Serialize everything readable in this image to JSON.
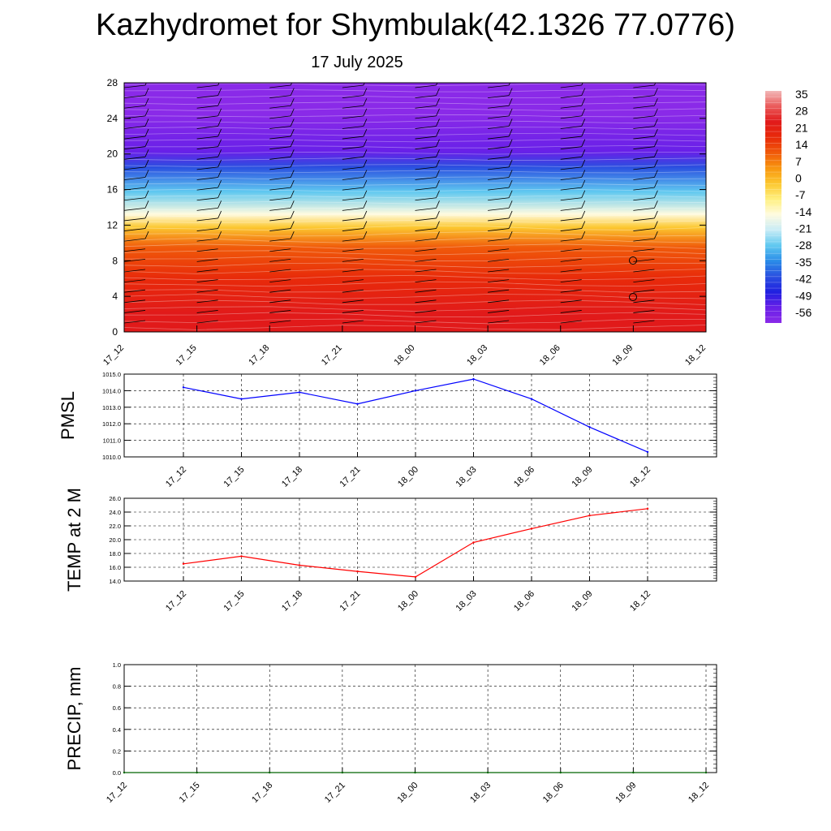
{
  "page": {
    "title": "Kazhydromet for Shymbulak(42.1326 77.0776)",
    "subtitle": "17 July 2025"
  },
  "colorbar": {
    "labels": [
      "35",
      "28",
      "21",
      "14",
      "7",
      "0",
      "-7",
      "-14",
      "-21",
      "-28",
      "-35",
      "-42",
      "-49",
      "-56"
    ],
    "colors": [
      "#f2b8b8",
      "#ea5a5a",
      "#e11a1a",
      "#e82a0a",
      "#f05a0a",
      "#f8960f",
      "#fcc830",
      "#fff080",
      "#fffbe0",
      "#c8ecf6",
      "#5fc8f0",
      "#2a8ce8",
      "#2a50e0",
      "#2020e0",
      "#6820e8",
      "#8a2ae8"
    ]
  },
  "chart_data": [
    {
      "type": "heatmap",
      "name": "vertical-profile",
      "x": [
        "17_12",
        "17_15",
        "17_18",
        "17_21",
        "18_00",
        "18_03",
        "18_06",
        "18_09",
        "18_12"
      ],
      "y_ticks": [
        0,
        4,
        8,
        12,
        16,
        20,
        24,
        28
      ],
      "ylim": [
        0,
        28
      ],
      "bands": [
        {
          "from": 0,
          "to": 4,
          "value": 25
        },
        {
          "from": 4,
          "to": 8,
          "value": 18
        },
        {
          "from": 8,
          "to": 11,
          "value": 8
        },
        {
          "from": 11,
          "to": 12.5,
          "value": -5
        },
        {
          "from": 12.5,
          "to": 14,
          "value": -14
        },
        {
          "from": 14,
          "to": 17.5,
          "value": -30
        },
        {
          "from": 17.5,
          "to": 19.5,
          "value": -42
        },
        {
          "from": 19.5,
          "to": 21,
          "value": -56
        },
        {
          "from": 21,
          "to": 28,
          "value": -62
        }
      ]
    },
    {
      "type": "line",
      "name": "pmsl",
      "ylabel": "PMSL",
      "x": [
        "17_12",
        "17_15",
        "17_18",
        "17_21",
        "18_00",
        "18_03",
        "18_06",
        "18_09",
        "18_12"
      ],
      "values": [
        1014.2,
        1013.5,
        1013.9,
        1013.2,
        1014.0,
        1014.7,
        1013.5,
        1011.8,
        1010.3
      ],
      "ylim": [
        1010.0,
        1015.0
      ],
      "y_ticks": [
        "1010.0",
        "1011.0",
        "1012.0",
        "1013.0",
        "1014.0",
        "1015.0"
      ],
      "color": "#0000ff",
      "grid": true
    },
    {
      "type": "line",
      "name": "temp",
      "ylabel": "TEMP at 2 M",
      "x": [
        "17_12",
        "17_15",
        "17_18",
        "17_21",
        "18_00",
        "18_03",
        "18_06",
        "18_09",
        "18_12"
      ],
      "values": [
        16.5,
        17.6,
        16.3,
        15.4,
        14.6,
        19.6,
        21.6,
        23.5,
        24.5
      ],
      "ylim": [
        14.0,
        26.0
      ],
      "y_ticks": [
        "14.0",
        "16.0",
        "18.0",
        "20.0",
        "22.0",
        "24.0",
        "26.0"
      ],
      "color": "#ff0000",
      "grid": true
    },
    {
      "type": "line",
      "name": "precip",
      "ylabel": "PRECIP, mm",
      "x": [
        "17_12",
        "17_15",
        "17_18",
        "17_21",
        "18_00",
        "18_03",
        "18_06",
        "18_09",
        "18_12"
      ],
      "values": [
        0,
        0,
        0,
        0,
        0,
        0,
        0,
        0,
        0
      ],
      "ylim": [
        0.0,
        1.0
      ],
      "y_ticks": [
        "0.0",
        "0.2",
        "0.4",
        "0.6",
        "0.8",
        "1.0"
      ],
      "color": "#006400",
      "grid": true
    }
  ]
}
